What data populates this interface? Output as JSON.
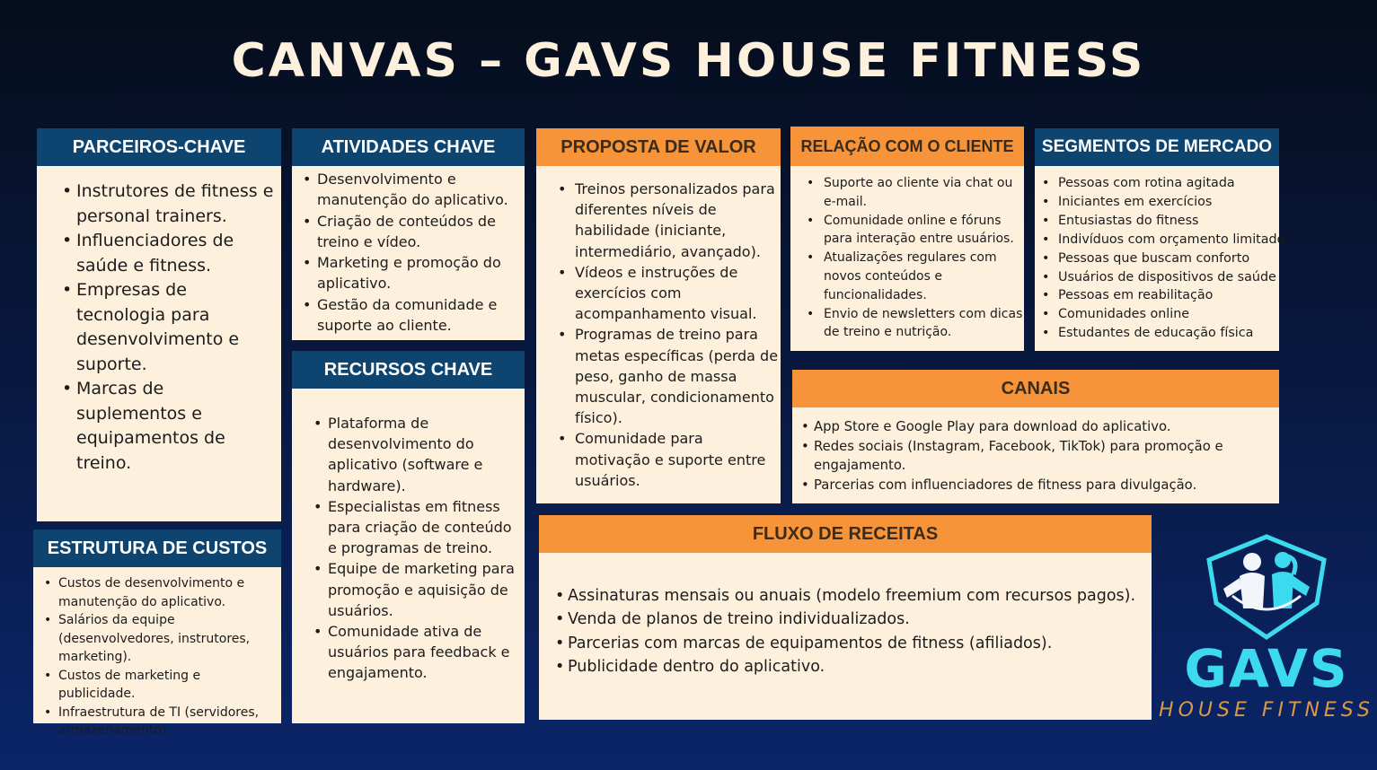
{
  "title": "CANVAS – GAVS HOUSE FITNESS",
  "colors": {
    "background": "#08183d",
    "card": "#fdf0dc",
    "navy_header": "#0e4470",
    "orange_header": "#f7943a",
    "logo_cyan": "#3dd9ee",
    "logo_gold": "#d99a43"
  },
  "parceiros": {
    "title": "PARCEIROS-CHAVE",
    "items": [
      "Instrutores de fitness e personal trainers.",
      "Influenciadores de saúde e fitness.",
      "Empresas de tecnologia para desenvolvimento e suporte.",
      "Marcas de suplementos e equipamentos de treino."
    ]
  },
  "atividades": {
    "title": "ATIVIDADES CHAVE",
    "items": [
      "Desenvolvimento e manutenção do aplicativo.",
      "Criação de conteúdos de treino e vídeo.",
      "Marketing e promoção do aplicativo.",
      "Gestão da comunidade e suporte ao cliente."
    ]
  },
  "recursos": {
    "title": "RECURSOS CHAVE",
    "items": [
      "Plataforma de desenvolvimento do aplicativo (software e hardware).",
      "Especialistas em fitness para criação de conteúdo e programas de treino.",
      "Equipe de marketing para promoção e aquisição de usuários.",
      "Comunidade ativa de usuários para feedback e engajamento."
    ]
  },
  "custos": {
    "title": "ESTRUTURA DE CUSTOS",
    "items": [
      "Custos de desenvolvimento e manutenção do aplicativo.",
      "Salários da equipe (desenvolvedores, instrutores, marketing).",
      "Custos de marketing e publicidade.",
      "Infraestrutura de TI (servidores, armazenamento)."
    ]
  },
  "proposta": {
    "title": "PROPOSTA DE VALOR",
    "items": [
      "Treinos personalizados para diferentes níveis de habilidade (iniciante, intermediário, avançado).",
      "Vídeos e instruções de exercícios com acompanhamento visual.",
      "Programas de treino para metas específicas (perda de peso, ganho de massa muscular, condicionamento físico).",
      "Comunidade para motivação e suporte entre usuários."
    ]
  },
  "relacao": {
    "title": "RELAÇÃO COM O CLIENTE",
    "items": [
      "Suporte ao cliente via chat ou e-mail.",
      "Comunidade online e fóruns para interação entre usuários.",
      "Atualizações regulares com novos conteúdos e funcionalidades.",
      "Envio de newsletters com dicas de treino e nutrição."
    ]
  },
  "segmentos": {
    "title": "SEGMENTOS DE MERCADO",
    "items": [
      "Pessoas com rotina agitada",
      "Iniciantes em exercícios",
      "Entusiastas do fitness",
      "Indivíduos com orçamento limitado",
      "Pessoas que buscam conforto",
      "Usuários de dispositivos de saúde",
      "Pessoas em reabilitação",
      "Comunidades online",
      "Estudantes de educação física"
    ]
  },
  "canais": {
    "title": "CANAIS",
    "items": [
      "App Store e Google Play para download do aplicativo.",
      "Redes sociais (Instagram, Facebook, TikTok) para promoção e engajamento.",
      "Parcerias com influenciadores de fitness para divulgação."
    ]
  },
  "receitas": {
    "title": "FLUXO DE RECEITAS",
    "items": [
      "Assinaturas mensais ou anuais (modelo freemium com recursos pagos).",
      "Venda de planos de treino individualizados.",
      "Parcerias com marcas de equipamentos de fitness (afiliados).",
      "Publicidade dentro do aplicativo."
    ]
  },
  "logo": {
    "word": "GAVS",
    "subtitle": "HOUSE FITNESS"
  }
}
